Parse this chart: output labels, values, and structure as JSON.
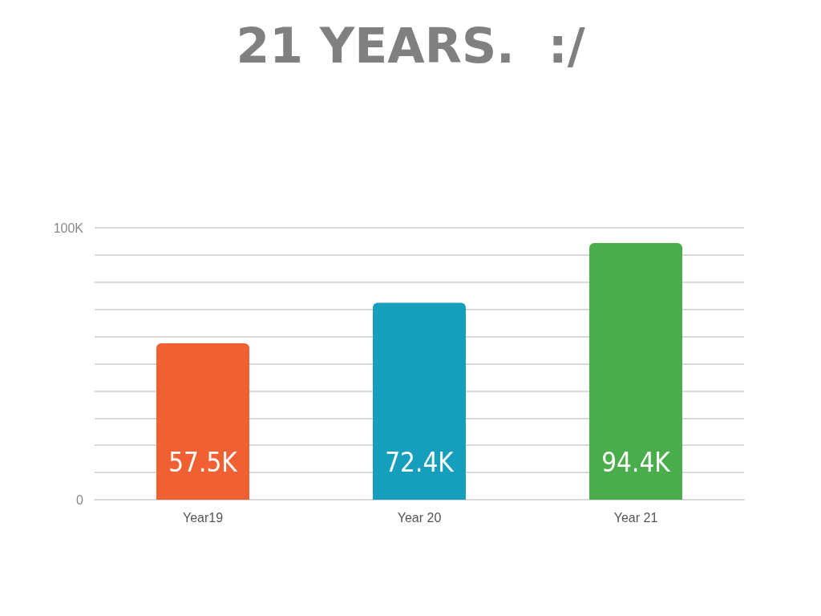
{
  "chart_data": {
    "type": "bar",
    "title": "21 YEARS.  :/",
    "categories": [
      "Year19",
      "Year 20",
      "Year 21"
    ],
    "values": [
      57500,
      72400,
      94400
    ],
    "colors": [
      "#f06033",
      "#159fbd",
      "#4aad4b"
    ],
    "value_labels": [
      "57.5K",
      "72.4K",
      "94.4K"
    ],
    "ylim": [
      0,
      100000
    ],
    "yticks": [
      0,
      {
        "value": 10000,
        "label": null
      },
      {
        "value": 20000,
        "label": null
      },
      {
        "value": 30000,
        "label": null
      },
      {
        "value": 40000,
        "label": null
      },
      {
        "value": 50000,
        "label": null
      },
      {
        "value": 60000,
        "label": null
      },
      {
        "value": 70000,
        "label": null
      },
      {
        "value": 80000,
        "label": null
      },
      {
        "value": 90000,
        "label": null
      },
      {
        "value": 100000,
        "label": "100K"
      }
    ],
    "grid": "y"
  }
}
